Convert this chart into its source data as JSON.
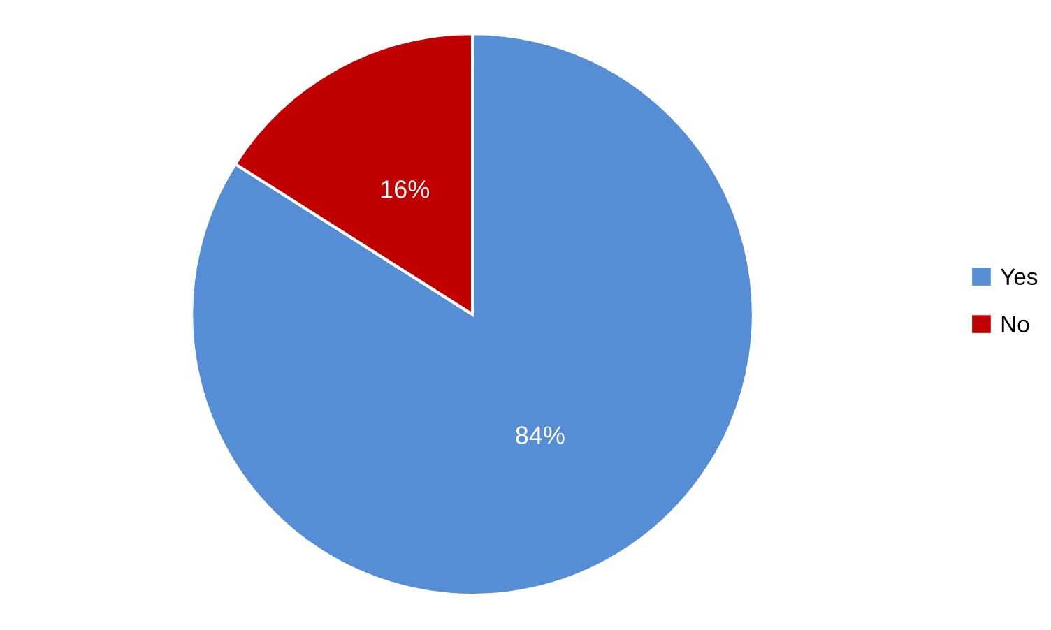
{
  "chart_data": {
    "type": "pie",
    "categories": [
      "Yes",
      "No"
    ],
    "values": [
      84,
      16
    ],
    "colors": [
      "#558ed5",
      "#c00000"
    ],
    "value_labels": [
      "84%",
      "16%"
    ],
    "legend": "right"
  }
}
